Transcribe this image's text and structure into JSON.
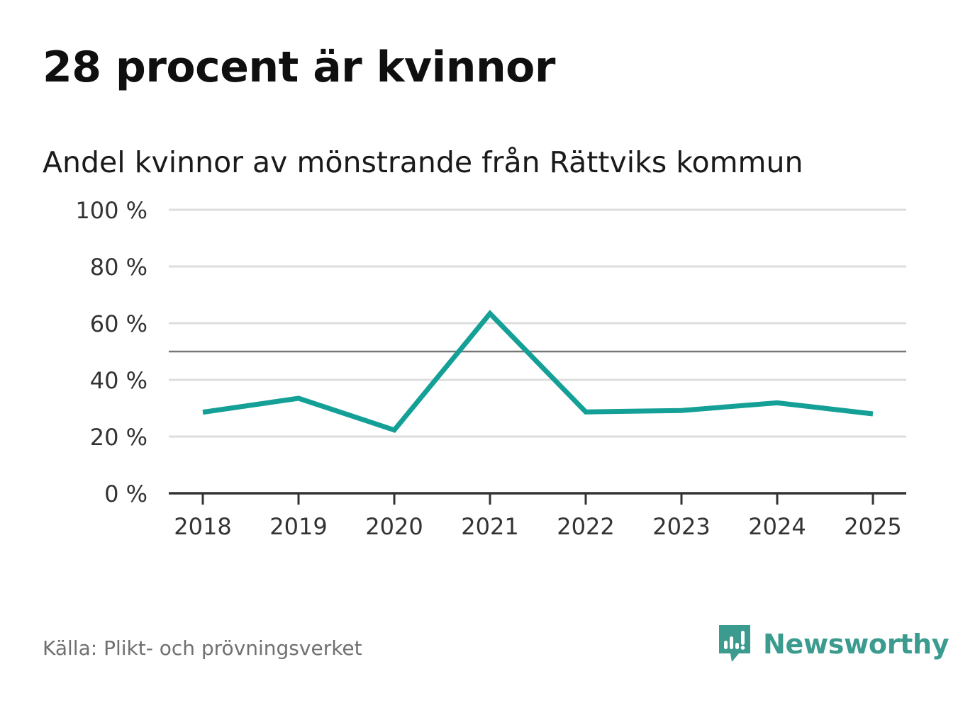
{
  "title": "28 procent är kvinnor",
  "subtitle": "Andel kvinnor av mönstrande från Rättviks kommun",
  "source": "Källa: Plikt- och prövningsverket",
  "brand": {
    "name": "Newsworthy",
    "icon": "newsworthy-logo-icon",
    "color": "#3a9b8e"
  },
  "colors": {
    "line": "#14a096",
    "grid": "#dddddd",
    "reference": "#777777",
    "axis": "#333333"
  },
  "chart_data": {
    "type": "line",
    "title": "Andel kvinnor av mönstrande från Rättviks kommun",
    "xlabel": "",
    "ylabel": "",
    "categories": [
      "2018",
      "2019",
      "2020",
      "2021",
      "2022",
      "2023",
      "2024",
      "2025"
    ],
    "series": [
      {
        "name": "Andel kvinnor",
        "values": [
          28.6,
          33.5,
          22.3,
          63.4,
          28.7,
          29.2,
          31.9,
          28.0
        ]
      }
    ],
    "ylim": [
      0,
      100
    ],
    "yticks": [
      0,
      20,
      40,
      60,
      80,
      100
    ],
    "ytick_labels": [
      "0 %",
      "20 %",
      "40 %",
      "60 %",
      "80 %",
      "100 %"
    ],
    "reference_line": 50,
    "grid": true,
    "legend": "none"
  }
}
